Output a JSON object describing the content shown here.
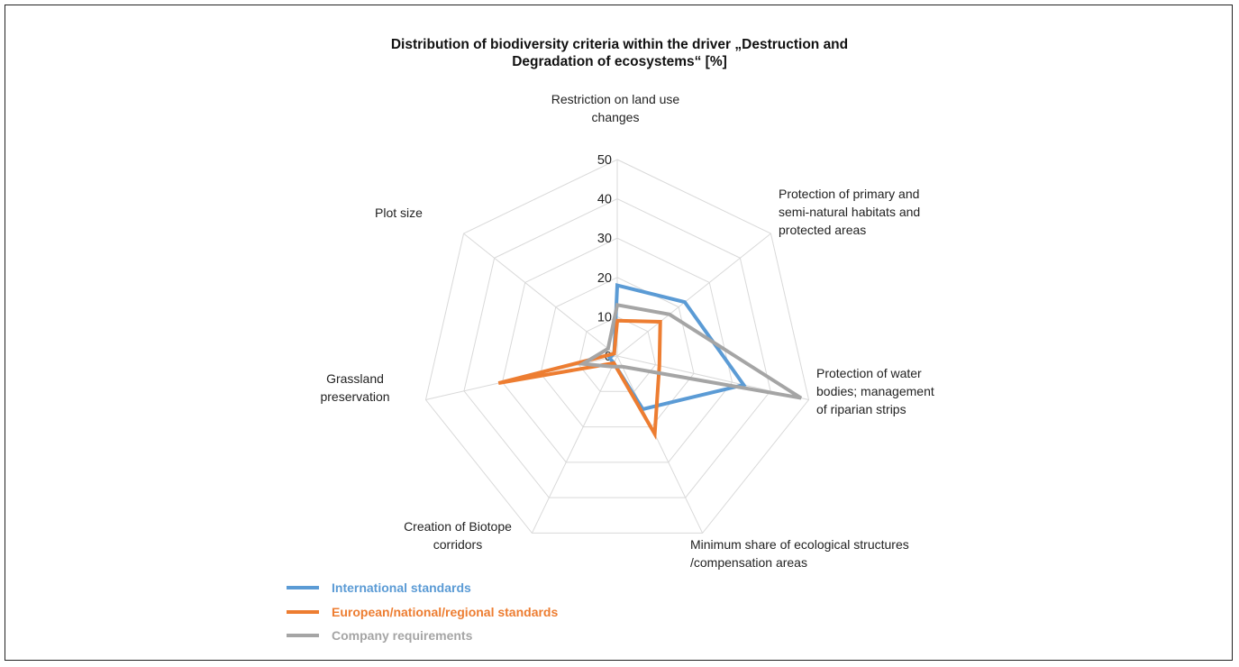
{
  "colors": {
    "background": "#ffffff",
    "grid": "#d9d9d9",
    "international": "#5b9bd5",
    "european": "#ed7d31",
    "company": "#a5a5a5",
    "text": "#111111"
  },
  "chart_data": {
    "type": "radar",
    "title": [
      "Distribution of biodiversity criteria within the driver „Destruction and",
      "Degradation of ecosystems“ [%]"
    ],
    "categories": [
      [
        "Restriction on land use",
        "changes"
      ],
      [
        "Protection of primary and",
        "semi-natural habitats and",
        "protected areas"
      ],
      [
        "Protection of water",
        "bodies; management",
        "of riparian strips"
      ],
      [
        "Minimum  share of ecological structures",
        "/compensation areas"
      ],
      [
        "Creation of Biotope",
        "corridors"
      ],
      [
        "Grassland",
        "preservation"
      ],
      [
        "Plot size"
      ]
    ],
    "axis_ticks": [
      "0",
      "10",
      "20",
      "30",
      "40",
      "50"
    ],
    "rlim": [
      0,
      50
    ],
    "grid": true,
    "legend_position": "bottom-left",
    "series": [
      {
        "name": "International standards",
        "color": "#5b9bd5",
        "values": [
          18,
          22,
          33,
          15,
          2,
          2,
          1
        ]
      },
      {
        "name": "European/national/regional standards",
        "color": "#ed7d31",
        "values": [
          9,
          14,
          11,
          22,
          2,
          31,
          1
        ]
      },
      {
        "name": "Company requirements",
        "color": "#a5a5a5",
        "values": [
          13,
          17,
          48,
          3,
          3,
          9,
          3
        ]
      }
    ]
  }
}
